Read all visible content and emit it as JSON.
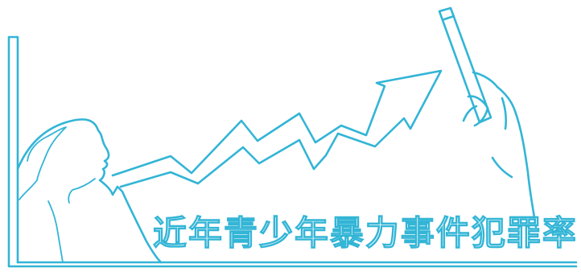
{
  "illustration": {
    "ink_color": "#33b5d6",
    "paper_color": "#ffffff",
    "caption": [
      "近",
      "年",
      "青",
      "少",
      "年",
      "暴",
      "力",
      "事",
      "件",
      "犯",
      "罪",
      "率"
    ]
  }
}
